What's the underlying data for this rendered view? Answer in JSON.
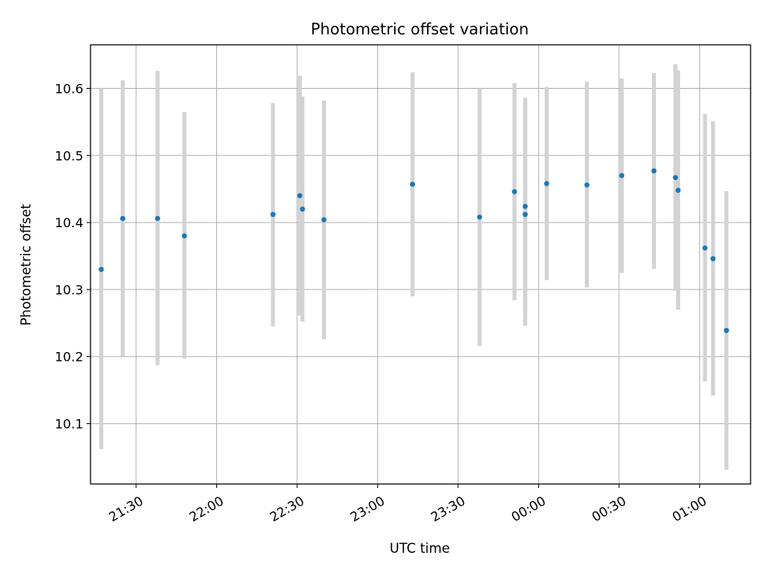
{
  "chart_data": {
    "type": "scatter",
    "title": "Photometric offset variation",
    "xlabel": "UTC time",
    "ylabel": "Photometric offset",
    "x_axis_kind": "time",
    "grid": true,
    "xlim": [
      "21:13",
      "01:19"
    ],
    "ylim": [
      10.01,
      10.665
    ],
    "x_ticks": [
      "21:30",
      "22:00",
      "22:30",
      "23:00",
      "23:30",
      "00:00",
      "00:30",
      "01:00"
    ],
    "y_ticks": [
      "10.1",
      "10.2",
      "10.3",
      "10.4",
      "10.5",
      "10.6"
    ],
    "marker_color": "#1f77b4",
    "errorbar_color": "#d3d3d3",
    "points": [
      {
        "x": "21:17",
        "y": 10.33,
        "lo": 10.062,
        "hi": 10.6
      },
      {
        "x": "21:25",
        "y": 10.406,
        "lo": 10.2,
        "hi": 10.612
      },
      {
        "x": "21:38",
        "y": 10.406,
        "lo": 10.187,
        "hi": 10.626
      },
      {
        "x": "21:48",
        "y": 10.38,
        "lo": 10.197,
        "hi": 10.565
      },
      {
        "x": "22:21",
        "y": 10.412,
        "lo": 10.245,
        "hi": 10.578
      },
      {
        "x": "22:31",
        "y": 10.44,
        "lo": 10.261,
        "hi": 10.619
      },
      {
        "x": "22:32",
        "y": 10.42,
        "lo": 10.252,
        "hi": 10.588
      },
      {
        "x": "22:40",
        "y": 10.404,
        "lo": 10.226,
        "hi": 10.582
      },
      {
        "x": "23:13",
        "y": 10.457,
        "lo": 10.29,
        "hi": 10.624
      },
      {
        "x": "23:38",
        "y": 10.408,
        "lo": 10.216,
        "hi": 10.6
      },
      {
        "x": "23:51",
        "y": 10.446,
        "lo": 10.284,
        "hi": 10.608
      },
      {
        "x": "23:55",
        "y": 10.412,
        "lo": 10.246,
        "hi": 10.578
      },
      {
        "x": "23:55",
        "y": 10.424,
        "lo": 10.263,
        "hi": 10.586
      },
      {
        "x": "00:03",
        "y": 10.458,
        "lo": 10.314,
        "hi": 10.602
      },
      {
        "x": "00:18",
        "y": 10.456,
        "lo": 10.303,
        "hi": 10.61
      },
      {
        "x": "00:31",
        "y": 10.47,
        "lo": 10.325,
        "hi": 10.615
      },
      {
        "x": "00:43",
        "y": 10.477,
        "lo": 10.331,
        "hi": 10.623
      },
      {
        "x": "00:51",
        "y": 10.467,
        "lo": 10.298,
        "hi": 10.636
      },
      {
        "x": "00:52",
        "y": 10.448,
        "lo": 10.27,
        "hi": 10.627
      },
      {
        "x": "01:02",
        "y": 10.362,
        "lo": 10.163,
        "hi": 10.562
      },
      {
        "x": "01:05",
        "y": 10.346,
        "lo": 10.142,
        "hi": 10.551
      },
      {
        "x": "01:10",
        "y": 10.239,
        "lo": 10.031,
        "hi": 10.447
      }
    ]
  }
}
